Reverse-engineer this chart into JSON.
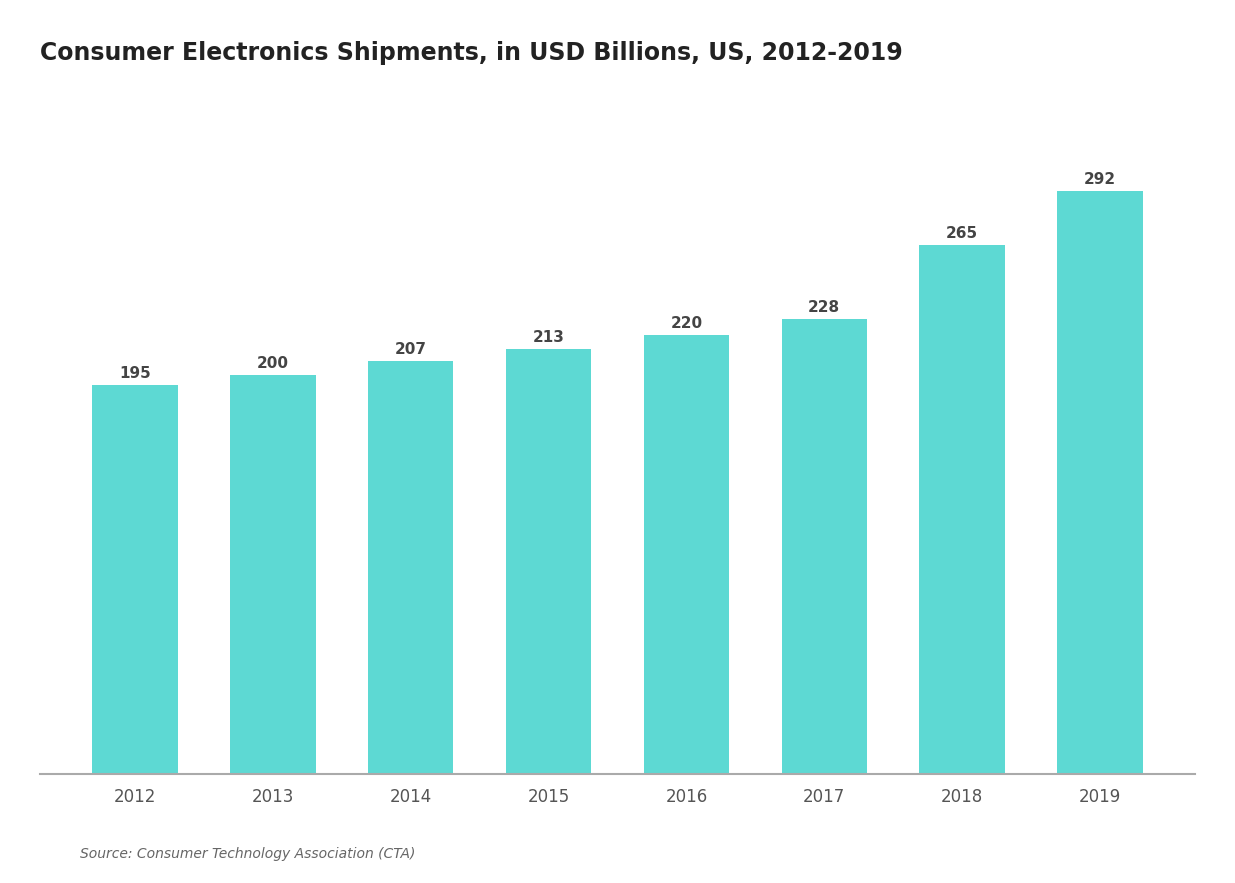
{
  "title": "Consumer Electronics Shipments, in USD Billions, US, 2012-2019",
  "years": [
    "2012",
    "2013",
    "2014",
    "2015",
    "2016",
    "2017",
    "2018",
    "2019"
  ],
  "values": [
    195,
    200,
    207,
    213,
    220,
    228,
    265,
    292
  ],
  "bar_labels": [
    "195",
    "200",
    "207",
    "213",
    "220",
    "228",
    "265",
    "292"
  ],
  "bar_color": "#5dd9d3",
  "background_color": "#ffffff",
  "plot_bg_color": "#ffffff",
  "text_color": "#333333",
  "title_color": "#222222",
  "axis_color": "#aaaaaa",
  "label_color": "#444444",
  "tick_color": "#555555",
  "source_color": "#666666",
  "ylim": [
    0,
    340
  ],
  "source_text": "Source: Consumer Technology Association (CTA)",
  "title_fontsize": 17,
  "label_fontsize": 11,
  "tick_fontsize": 12,
  "source_fontsize": 10,
  "bar_width": 0.62
}
